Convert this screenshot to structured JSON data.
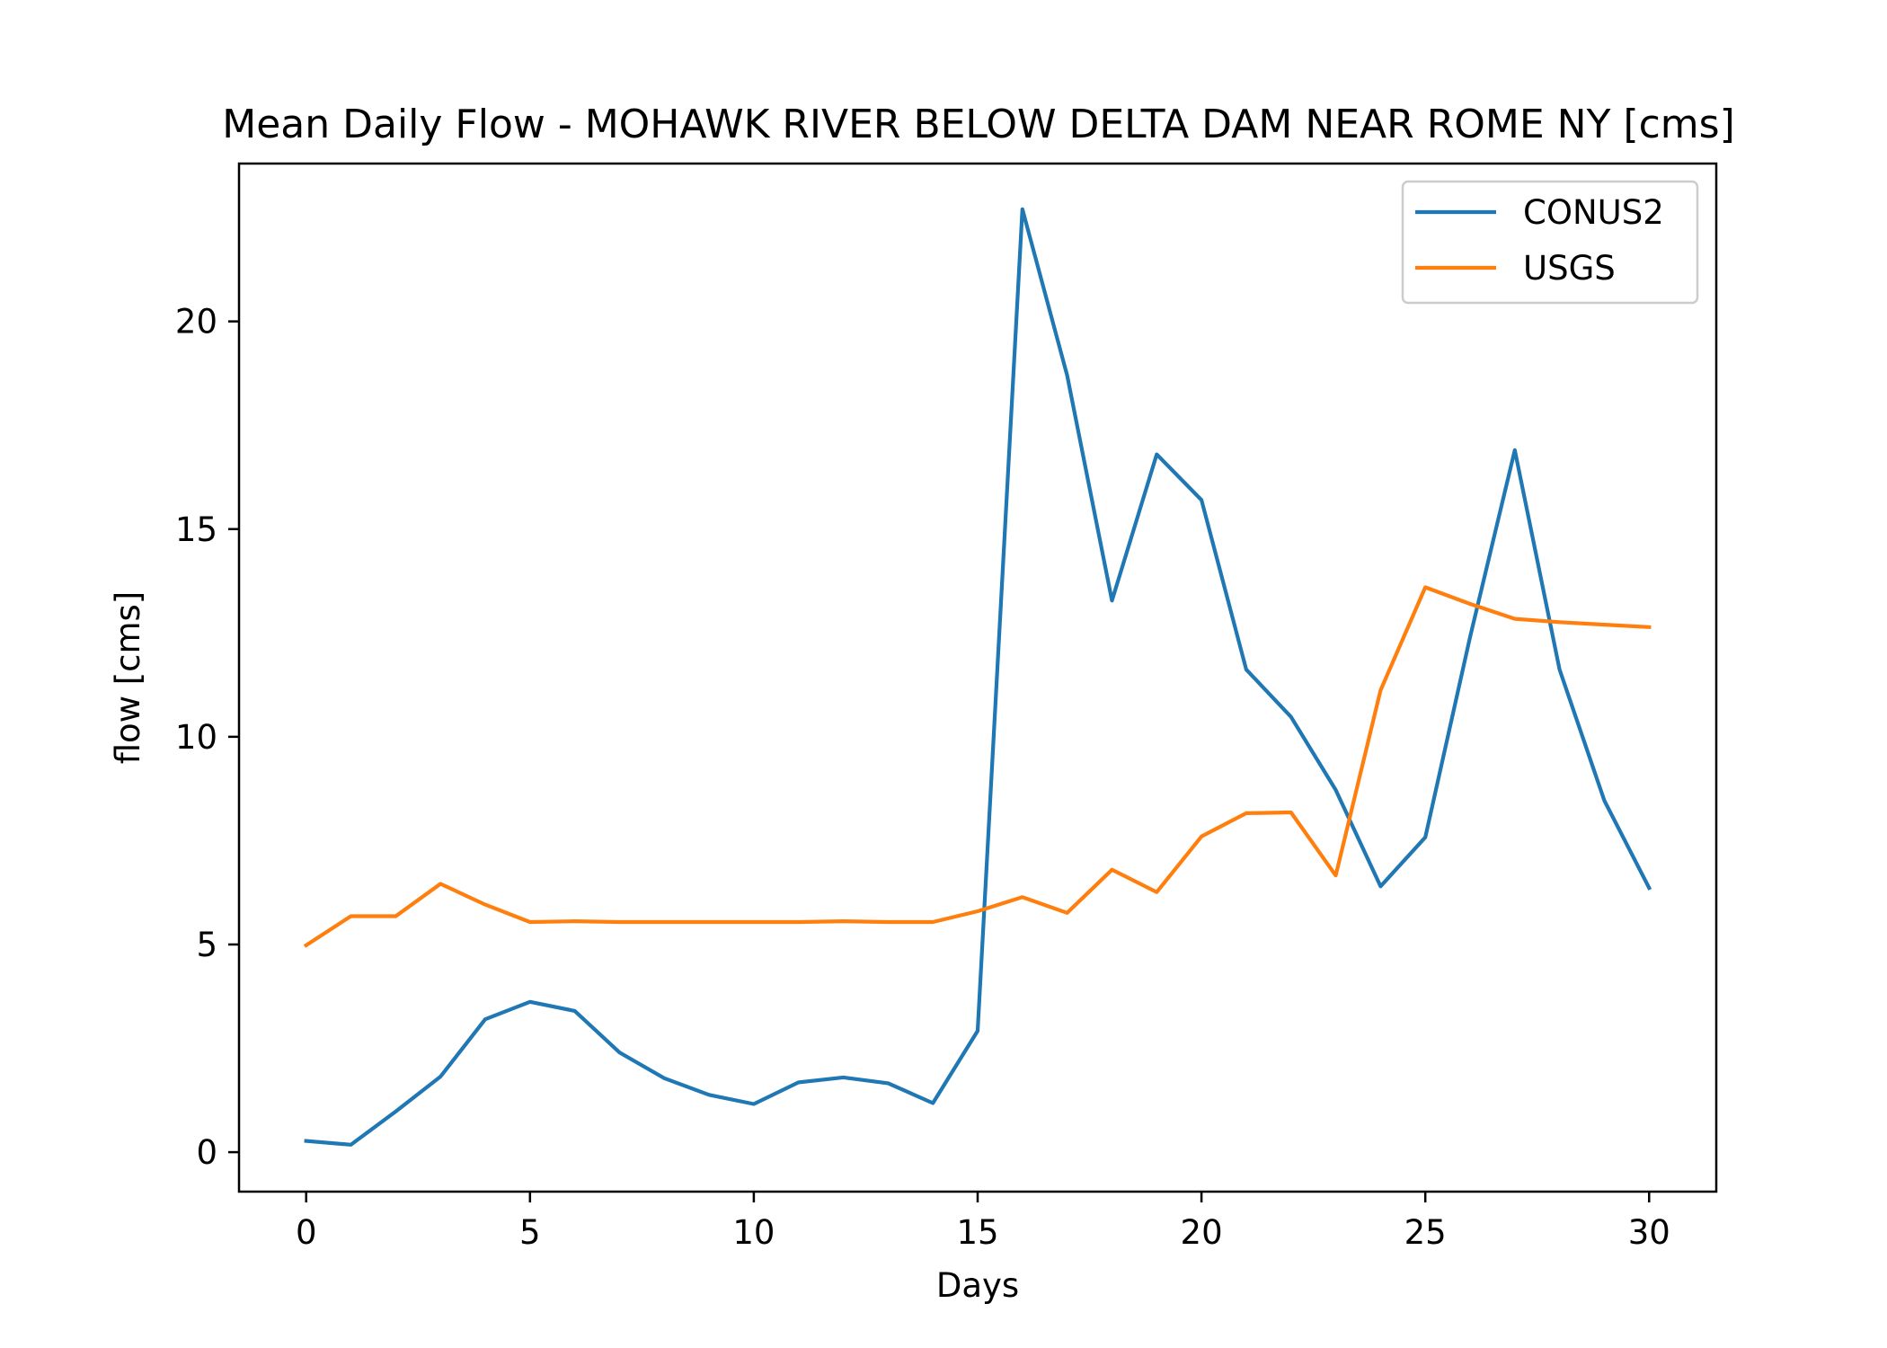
{
  "chart_data": {
    "type": "line",
    "title": "Mean Daily Flow - MOHAWK RIVER BELOW DELTA DAM NEAR ROME NY [cms]",
    "xlabel": "Days",
    "ylabel": "flow [cms]",
    "xlim": [
      -1.5,
      31.5
    ],
    "ylim": [
      -0.95,
      23.8
    ],
    "xticks": [
      0,
      5,
      10,
      15,
      20,
      25,
      30
    ],
    "yticks": [
      0,
      5,
      10,
      15,
      20
    ],
    "grid": false,
    "legend_position": "top-right",
    "x": [
      0,
      1,
      2,
      3,
      4,
      5,
      6,
      7,
      8,
      9,
      10,
      11,
      12,
      13,
      14,
      15,
      16,
      17,
      18,
      19,
      20,
      21,
      22,
      23,
      24,
      25,
      26,
      27,
      28,
      29,
      30
    ],
    "series": [
      {
        "name": "CONUS2",
        "color": "#1f77b4",
        "values": [
          0.27,
          0.18,
          0.98,
          1.82,
          3.2,
          3.62,
          3.4,
          2.4,
          1.78,
          1.38,
          1.16,
          1.68,
          1.8,
          1.66,
          1.18,
          2.92,
          22.7,
          18.7,
          13.28,
          16.8,
          15.7,
          11.62,
          10.48,
          8.72,
          6.4,
          7.58,
          12.4,
          16.9,
          11.62,
          8.46,
          6.36
        ]
      },
      {
        "name": "USGS",
        "color": "#ff7f0e",
        "values": [
          4.98,
          5.68,
          5.68,
          6.46,
          5.96,
          5.54,
          5.56,
          5.54,
          5.54,
          5.54,
          5.54,
          5.54,
          5.56,
          5.54,
          5.54,
          5.8,
          6.14,
          5.76,
          6.8,
          6.26,
          7.6,
          8.16,
          8.18,
          6.66,
          11.12,
          13.6,
          13.2,
          12.84,
          12.76,
          12.7,
          12.64
        ]
      }
    ]
  }
}
